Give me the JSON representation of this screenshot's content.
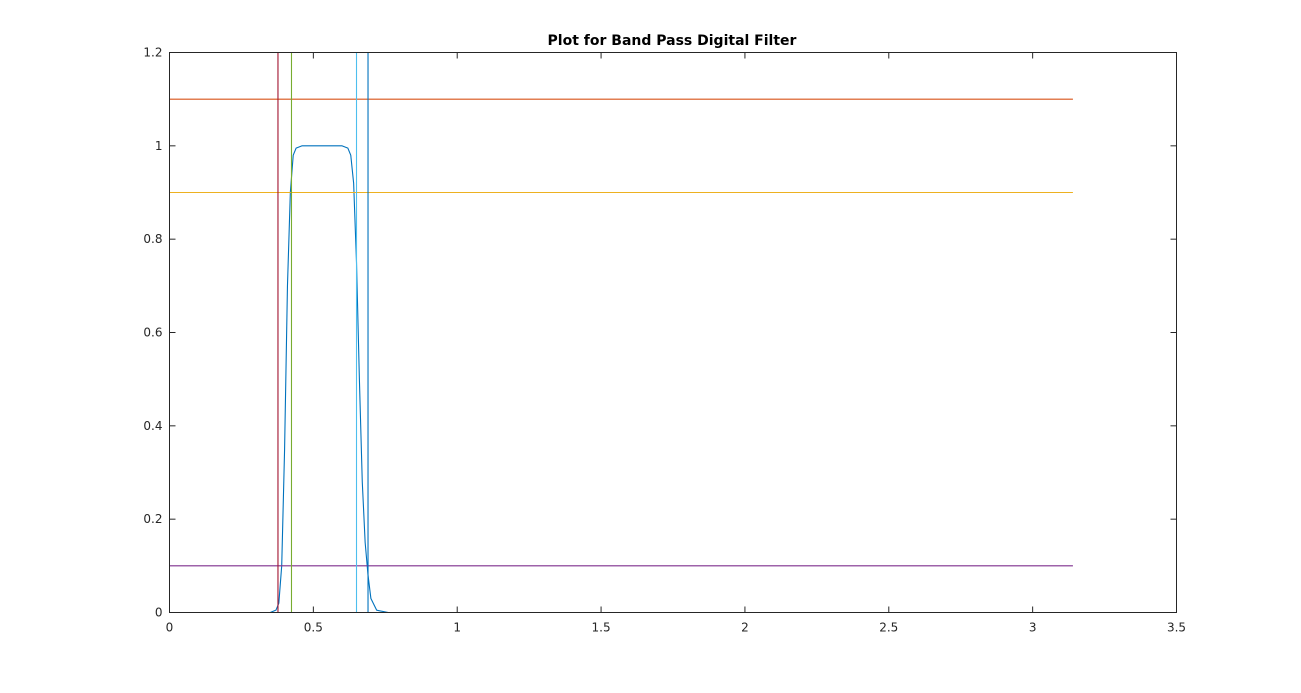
{
  "chart_data": {
    "type": "line",
    "title": "Plot for Band Pass Digital Filter",
    "xlabel": "",
    "ylabel": "",
    "xlim": [
      0,
      3.5
    ],
    "ylim": [
      0,
      1.2
    ],
    "x_ticks": [
      0,
      0.5,
      1,
      1.5,
      2,
      2.5,
      3,
      3.5
    ],
    "x_tick_labels": [
      "0",
      "0.5",
      "1",
      "1.5",
      "2",
      "2.5",
      "3",
      "3.5"
    ],
    "y_ticks": [
      0,
      0.2,
      0.4,
      0.6,
      0.8,
      1,
      1.2
    ],
    "y_tick_labels": [
      "0",
      "0.2",
      "0.4",
      "0.6",
      "0.8",
      "1",
      "1.2"
    ],
    "grid": false,
    "legend": "none",
    "series": [
      {
        "color": "#0072BD",
        "x": [
          0,
          0.35,
          0.37,
          0.38,
          0.39,
          0.4,
          0.41,
          0.42,
          0.43,
          0.44,
          0.46,
          0.5,
          0.55,
          0.6,
          0.62,
          0.63,
          0.64,
          0.65,
          0.66,
          0.67,
          0.68,
          0.69,
          0.7,
          0.72,
          0.76,
          1.0,
          3.14
        ],
        "y": [
          0,
          0,
          0.005,
          0.02,
          0.1,
          0.35,
          0.7,
          0.9,
          0.98,
          0.995,
          1.0,
          1.0,
          1.0,
          1.0,
          0.995,
          0.98,
          0.92,
          0.75,
          0.5,
          0.28,
          0.15,
          0.08,
          0.03,
          0.005,
          0,
          0,
          0
        ]
      },
      {
        "color": "#D95319",
        "x": [
          0,
          3.14
        ],
        "y": [
          1.1,
          1.1
        ]
      },
      {
        "color": "#EDB120",
        "x": [
          0,
          3.14
        ],
        "y": [
          0.9,
          0.9
        ]
      },
      {
        "color": "#7E2F8E",
        "x": [
          0,
          3.14
        ],
        "y": [
          0.1,
          0.1
        ]
      },
      {
        "color": "#A2142F",
        "x": [
          0.377,
          0.377
        ],
        "y": [
          0,
          1.2
        ]
      },
      {
        "color": "#77AC30",
        "x": [
          0.424,
          0.424
        ],
        "y": [
          0,
          1.2
        ]
      },
      {
        "color": "#4DBEEE",
        "x": [
          0.65,
          0.65
        ],
        "y": [
          0,
          1.2
        ]
      },
      {
        "color": "#0072BD",
        "x": [
          0.69,
          0.69
        ],
        "y": [
          0,
          1.2
        ]
      }
    ]
  }
}
